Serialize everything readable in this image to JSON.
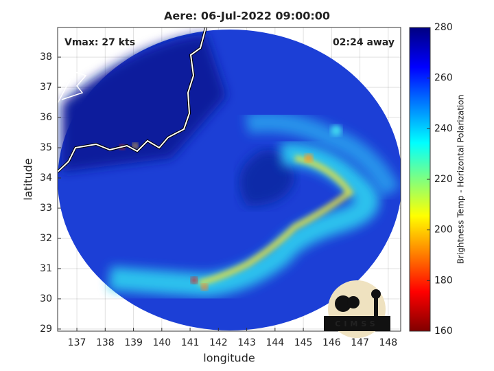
{
  "title": "Aere: 06-Jul-2022 09:00:00",
  "annotations": {
    "vmax": "Vmax: 27 kts",
    "time_away": "02:24 away"
  },
  "map": {
    "xlabel": "longitude",
    "ylabel": "latitude",
    "xlim": [
      136.32,
      148.44
    ],
    "ylim": [
      28.93,
      38.98
    ],
    "xticks": [
      137,
      138,
      139,
      140,
      141,
      142,
      143,
      144,
      145,
      146,
      147,
      148
    ],
    "yticks": [
      29,
      30,
      31,
      32,
      33,
      34,
      35,
      36,
      37,
      38
    ],
    "grid": true
  },
  "colorbar": {
    "label": "Brightness Temp - Horizontal Polarization",
    "lim": [
      160,
      280
    ],
    "ticks": [
      160,
      180,
      200,
      220,
      240,
      260,
      280
    ]
  },
  "logo": "CIMSS"
}
